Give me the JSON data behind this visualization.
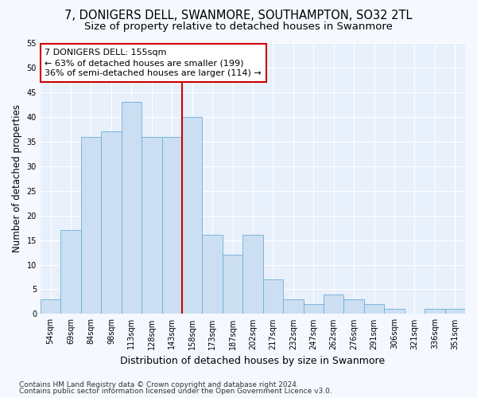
{
  "title": "7, DONIGERS DELL, SWANMORE, SOUTHAMPTON, SO32 2TL",
  "subtitle": "Size of property relative to detached houses in Swanmore",
  "xlabel": "Distribution of detached houses by size in Swanmore",
  "ylabel": "Number of detached properties",
  "categories": [
    "54sqm",
    "69sqm",
    "84sqm",
    "98sqm",
    "113sqm",
    "128sqm",
    "143sqm",
    "158sqm",
    "173sqm",
    "187sqm",
    "202sqm",
    "217sqm",
    "232sqm",
    "247sqm",
    "262sqm",
    "276sqm",
    "291sqm",
    "306sqm",
    "321sqm",
    "336sqm",
    "351sqm"
  ],
  "values": [
    3,
    17,
    36,
    37,
    43,
    36,
    36,
    40,
    16,
    12,
    16,
    7,
    3,
    2,
    4,
    3,
    2,
    1,
    0,
    1,
    1
  ],
  "bar_color": "#ccdff2",
  "bar_edge_color": "#6aaed6",
  "background_color": "#e8f0fb",
  "grid_color": "#ffffff",
  "fig_background": "#f5f8ff",
  "redline_x": 6.5,
  "redline_color": "#cc0000",
  "annotation_line1": "7 DONIGERS DELL: 155sqm",
  "annotation_line2": "← 63% of detached houses are smaller (199)",
  "annotation_line3": "36% of semi-detached houses are larger (114) →",
  "annotation_box_color": "#ffffff",
  "annotation_box_edge": "#cc0000",
  "ylim": [
    0,
    55
  ],
  "yticks": [
    0,
    5,
    10,
    15,
    20,
    25,
    30,
    35,
    40,
    45,
    50,
    55
  ],
  "footer1": "Contains HM Land Registry data © Crown copyright and database right 2024.",
  "footer2": "Contains public sector information licensed under the Open Government Licence v3.0.",
  "title_fontsize": 10.5,
  "subtitle_fontsize": 9.5,
  "xlabel_fontsize": 9,
  "ylabel_fontsize": 8.5,
  "tick_fontsize": 7,
  "annotation_fontsize": 8,
  "footer_fontsize": 6.5
}
